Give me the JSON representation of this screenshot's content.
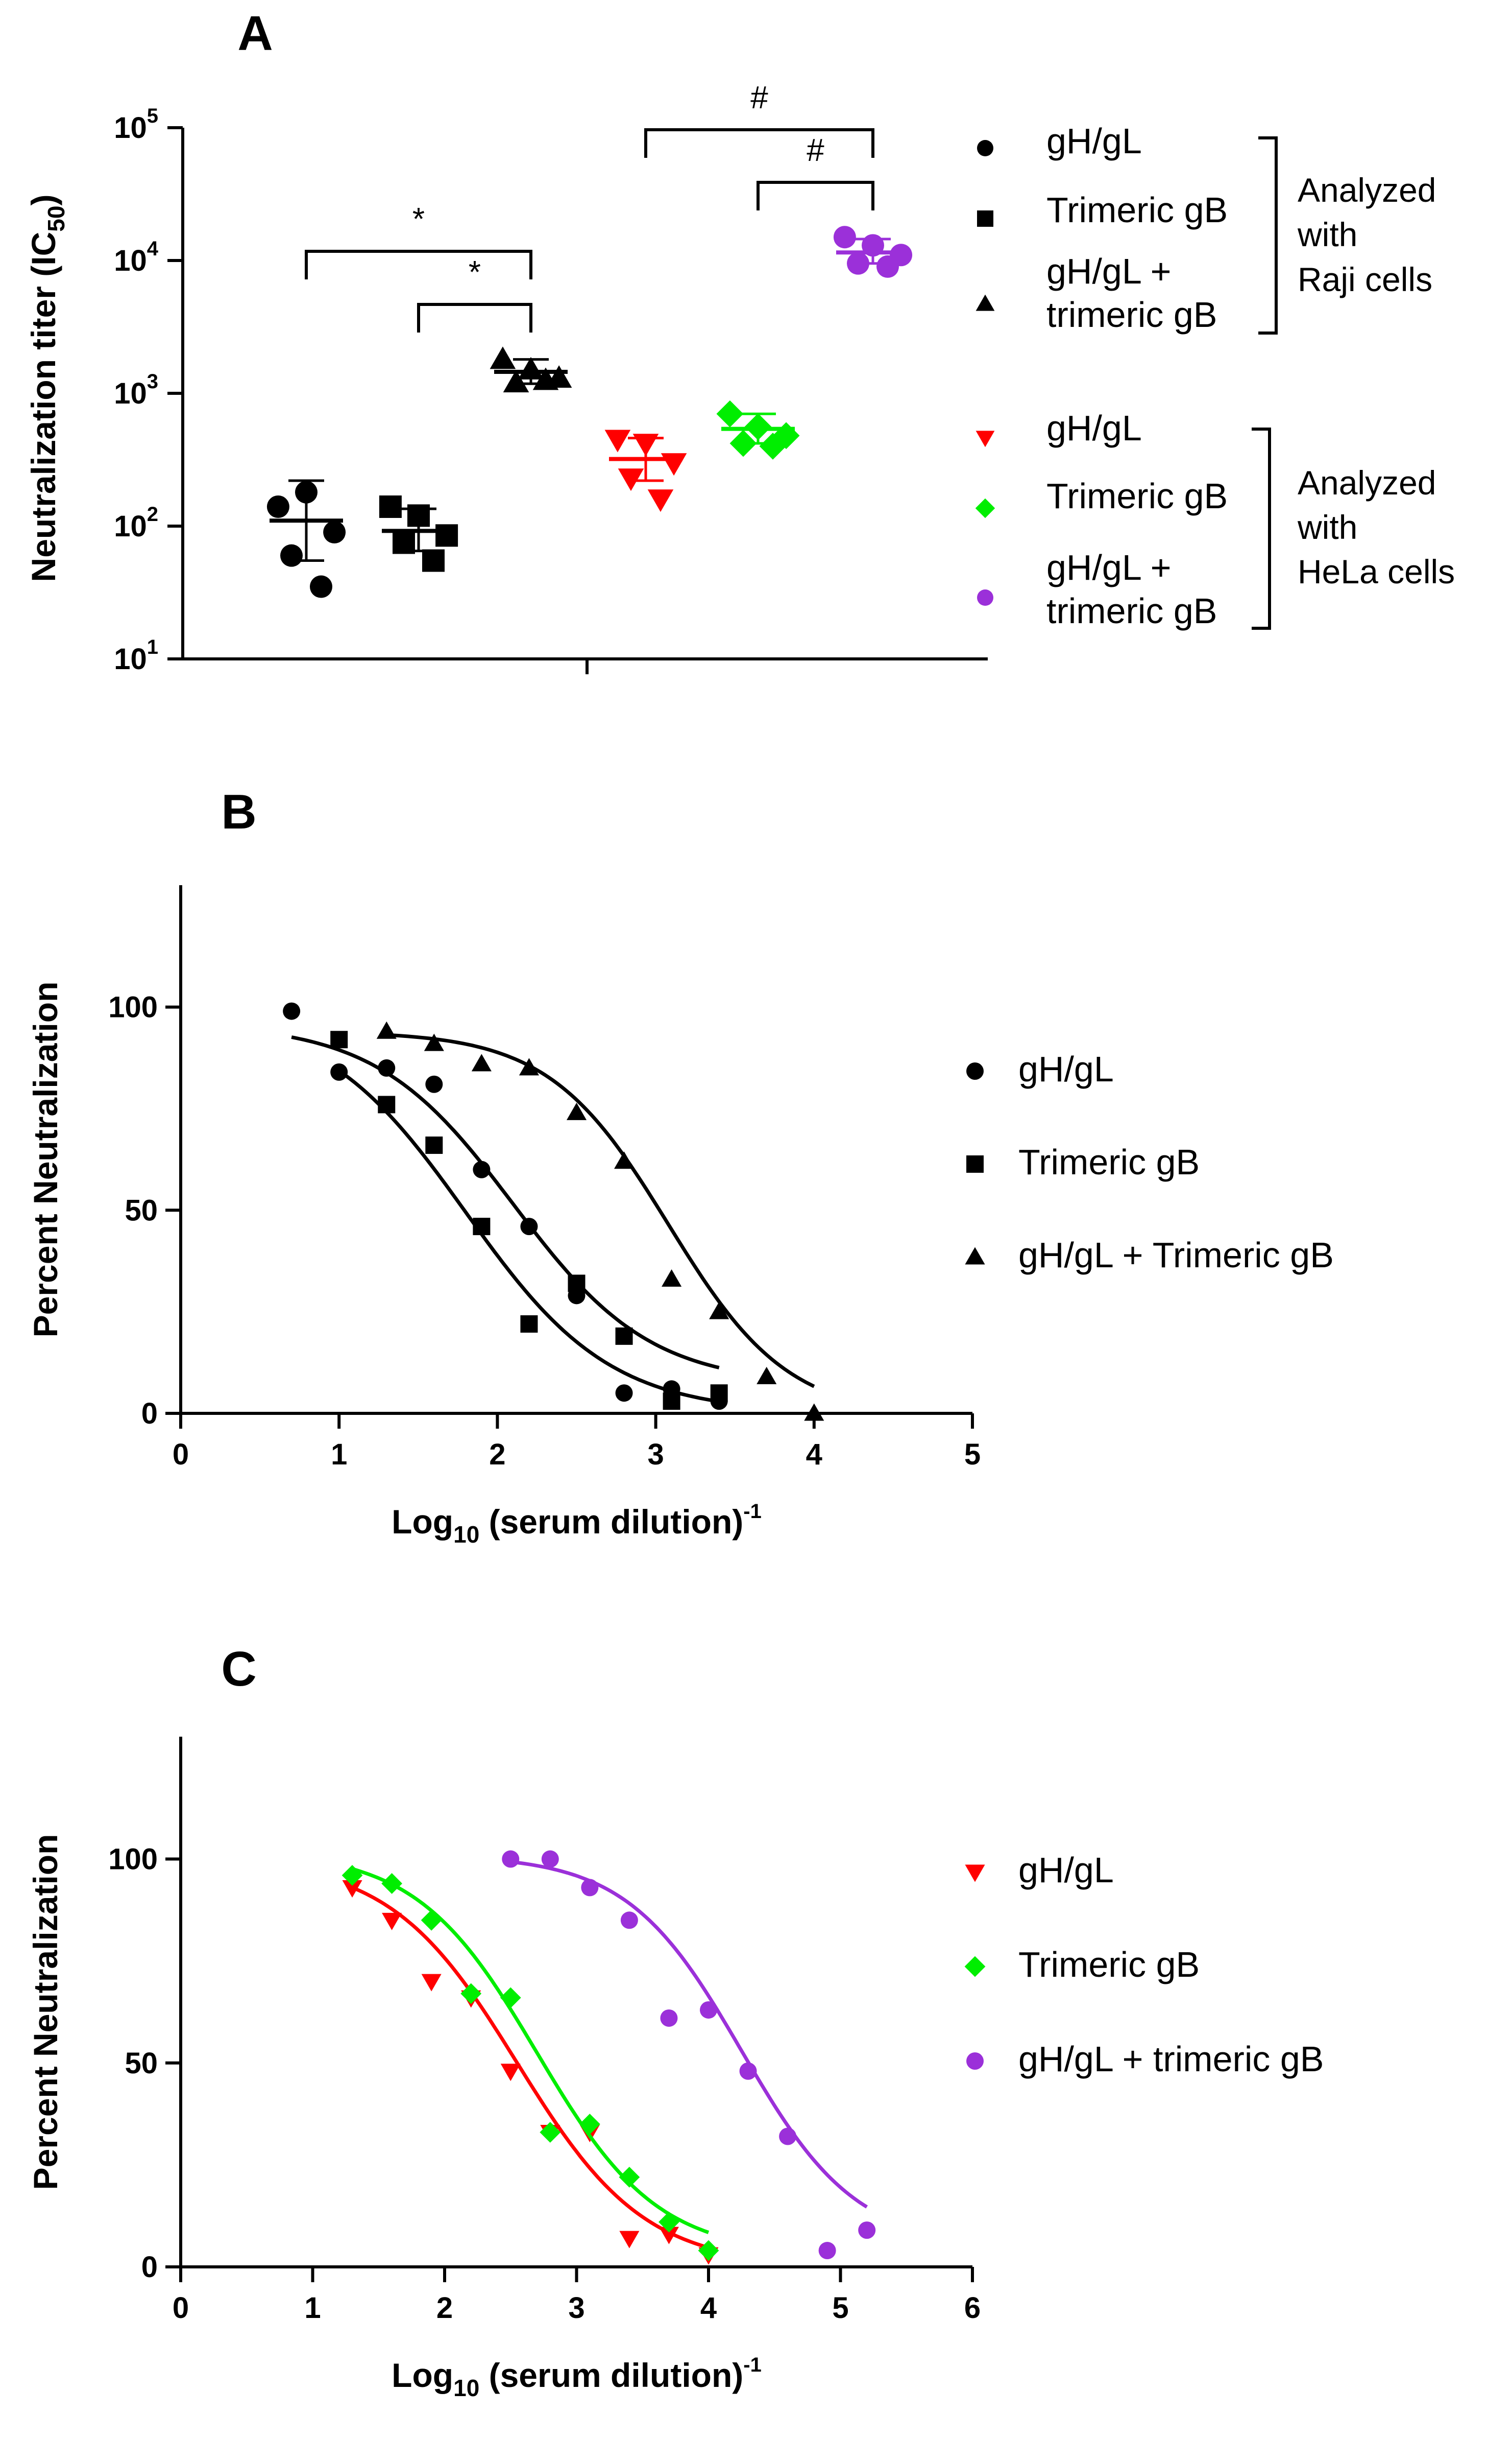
{
  "chart_data": [
    {
      "panel": "A",
      "type": "scatter",
      "ylabel": "Neutralization titer (IC50)",
      "ylabel_main": "Neutralization titer (IC",
      "ylabel_sub": "50",
      "ylabel_close": ")",
      "yscale": "log10",
      "ylim": [
        10,
        100000
      ],
      "ytick_exponents": [
        "1",
        "2",
        "3",
        "4",
        "5"
      ],
      "groups": [
        {
          "name": "gH/gL",
          "assay": "Raji cells",
          "color": "#000000",
          "marker": "circle",
          "values": [
            140,
            180,
            90,
            60,
            35
          ],
          "mean": 110,
          "sd_low": 55,
          "sd_high": 220
        },
        {
          "name": "Trimeric gB",
          "assay": "Raji cells",
          "color": "#000000",
          "marker": "square",
          "values": [
            140,
            120,
            85,
            75,
            55
          ],
          "mean": 92,
          "sd_low": 65,
          "sd_high": 135
        },
        {
          "name": "gH/gL + trimeric gB",
          "assay": "Raji cells",
          "color": "#000000",
          "marker": "triangle",
          "values": [
            1800,
            1500,
            1300,
            1200,
            1250
          ],
          "mean": 1450,
          "sd_low": 1180,
          "sd_high": 1800
        },
        {
          "name": "gH/gL",
          "assay": "HeLa cells",
          "color": "#ff0000",
          "marker": "triangle-down",
          "values": [
            450,
            420,
            300,
            230,
            160
          ],
          "mean": 320,
          "sd_low": 220,
          "sd_high": 460
        },
        {
          "name": "Trimeric gB",
          "assay": "HeLa cells",
          "color": "#00ee00",
          "marker": "diamond",
          "values": [
            700,
            560,
            480,
            420,
            400
          ],
          "mean": 540,
          "sd_low": 420,
          "sd_high": 700
        },
        {
          "name": "gH/gL + trimeric gB",
          "assay": "HeLa cells",
          "color": "#9b30d9",
          "marker": "circle",
          "values": [
            15000,
            13000,
            11000,
            9500,
            9000
          ],
          "mean": 11500,
          "sd_low": 9500,
          "sd_high": 14500
        }
      ],
      "significance": [
        {
          "from_group": 0,
          "to_group": 2,
          "label": "*"
        },
        {
          "from_group": 1,
          "to_group": 2,
          "label": "*"
        },
        {
          "from_group": 3,
          "to_group": 5,
          "label": "#"
        },
        {
          "from_group": 4,
          "to_group": 5,
          "label": "#"
        }
      ],
      "legend_groups": [
        {
          "entries": [
            {
              "line1": "gH/gL",
              "line2": "",
              "marker": "circle",
              "color": "#000000"
            },
            {
              "line1": "Trimeric gB",
              "line2": "",
              "marker": "square",
              "color": "#000000"
            },
            {
              "line1": "gH/gL +",
              "line2": "trimeric gB",
              "marker": "triangle",
              "color": "#000000"
            }
          ],
          "bracket_label": [
            "Analyzed",
            "with",
            "Raji cells"
          ]
        },
        {
          "entries": [
            {
              "line1": "gH/gL",
              "line2": "",
              "marker": "triangle-down",
              "color": "#ff0000"
            },
            {
              "line1": "Trimeric gB",
              "line2": "",
              "marker": "diamond",
              "color": "#00ee00"
            },
            {
              "line1": "gH/gL +",
              "line2": "trimeric gB",
              "marker": "circle",
              "color": "#9b30d9"
            }
          ],
          "bracket_label": [
            "Analyzed",
            "with",
            "HeLa cells"
          ]
        }
      ]
    },
    {
      "panel": "B",
      "type": "scatter",
      "xlabel_main": "Log",
      "xlabel_sub": "10",
      "xlabel_rest": " (serum dilution)",
      "xlabel_sup": "-1",
      "ylabel": "Percent Neutralization",
      "xlim": [
        0,
        5
      ],
      "ylim": [
        0,
        130
      ],
      "xticks": [
        "0",
        "1",
        "2",
        "3",
        "4",
        "5"
      ],
      "yticks": [
        "0",
        "50",
        "100"
      ],
      "series": [
        {
          "name": "gH/gL",
          "marker": "circle",
          "color": "#000000",
          "points": [
            [
              0.7,
              99
            ],
            [
              1.0,
              84
            ],
            [
              1.3,
              85
            ],
            [
              1.6,
              81
            ],
            [
              1.9,
              60
            ],
            [
              2.2,
              46
            ],
            [
              2.5,
              29
            ],
            [
              2.8,
              5
            ],
            [
              3.1,
              6
            ],
            [
              3.4,
              3
            ]
          ],
          "fit": {
            "top": 96,
            "bottom": 7,
            "logIC50": 2.1,
            "hill": 1.0,
            "x_start": 0.7,
            "x_end": 3.4
          }
        },
        {
          "name": "Trimeric gB",
          "marker": "square",
          "color": "#000000",
          "points": [
            [
              1.0,
              92
            ],
            [
              1.3,
              76
            ],
            [
              1.6,
              66
            ],
            [
              1.9,
              46
            ],
            [
              2.2,
              22
            ],
            [
              2.5,
              32
            ],
            [
              2.8,
              19
            ],
            [
              3.1,
              3
            ],
            [
              3.4,
              5
            ]
          ],
          "fit": {
            "top": 99,
            "bottom": 0,
            "logIC50": 1.8,
            "hill": 0.95,
            "x_start": 1.0,
            "x_end": 3.4
          }
        },
        {
          "name": "gH/gL + Trimeric gB",
          "marker": "triangle",
          "color": "#000000",
          "points": [
            [
              1.3,
              94
            ],
            [
              1.6,
              91
            ],
            [
              1.9,
              86
            ],
            [
              2.2,
              85
            ],
            [
              2.5,
              74
            ],
            [
              2.8,
              62
            ],
            [
              3.1,
              33
            ],
            [
              3.4,
              25
            ],
            [
              3.7,
              9
            ],
            [
              4.0,
              0
            ]
          ],
          "fit": {
            "top": 94,
            "bottom": -1,
            "logIC50": 3.08,
            "hill": 1.15,
            "x_start": 1.3,
            "x_end": 4.0
          }
        }
      ],
      "legend": [
        "gH/gL",
        "Trimeric gB",
        "gH/gL + Trimeric gB"
      ]
    },
    {
      "panel": "C",
      "type": "scatter",
      "xlabel_main": "Log",
      "xlabel_sub": "10",
      "xlabel_rest": " (serum dilution)",
      "xlabel_sup": "-1",
      "ylabel": "Percent Neutralization",
      "xlim": [
        0,
        6
      ],
      "ylim": [
        0,
        130
      ],
      "xticks": [
        "0",
        "1",
        "2",
        "3",
        "4",
        "5",
        "6"
      ],
      "yticks": [
        "0",
        "50",
        "100"
      ],
      "series": [
        {
          "name": "gH/gL",
          "marker": "triangle-down",
          "color": "#ff0000",
          "points": [
            [
              1.3,
              93
            ],
            [
              1.6,
              85
            ],
            [
              1.9,
              70
            ],
            [
              2.2,
              66
            ],
            [
              2.5,
              48
            ],
            [
              2.8,
              33
            ],
            [
              3.1,
              33
            ],
            [
              3.4,
              7
            ],
            [
              3.7,
              8
            ],
            [
              4.0,
              3
            ]
          ],
          "fit": {
            "top": 100,
            "bottom": 0,
            "logIC50": 2.55,
            "hill": 0.9,
            "x_start": 1.3,
            "x_end": 4.0
          }
        },
        {
          "name": "Trimeric gB",
          "marker": "diamond",
          "color": "#00ee00",
          "points": [
            [
              1.3,
              96
            ],
            [
              1.6,
              94
            ],
            [
              1.9,
              85
            ],
            [
              2.2,
              67
            ],
            [
              2.5,
              66
            ],
            [
              2.8,
              33
            ],
            [
              3.1,
              35
            ],
            [
              3.4,
              22
            ],
            [
              3.7,
              11
            ],
            [
              4.0,
              4
            ]
          ],
          "fit": {
            "top": 102,
            "bottom": 3,
            "logIC50": 2.7,
            "hill": 0.95,
            "x_start": 1.3,
            "x_end": 4.0
          }
        },
        {
          "name": "gH/gL + trimeric gB",
          "marker": "circle",
          "color": "#9b30d9",
          "points": [
            [
              2.5,
              100
            ],
            [
              2.8,
              100
            ],
            [
              3.1,
              93
            ],
            [
              3.4,
              85
            ],
            [
              3.7,
              61
            ],
            [
              4.0,
              63
            ],
            [
              4.3,
              48
            ],
            [
              4.6,
              32
            ],
            [
              4.9,
              4
            ],
            [
              5.2,
              9
            ]
          ],
          "fit": {
            "top": 101,
            "bottom": 5,
            "logIC50": 4.25,
            "hill": 1.0,
            "x_start": 2.5,
            "x_end": 5.2
          }
        }
      ],
      "legend": [
        "gH/gL",
        "Trimeric gB",
        "gH/gL + trimeric gB"
      ]
    }
  ]
}
